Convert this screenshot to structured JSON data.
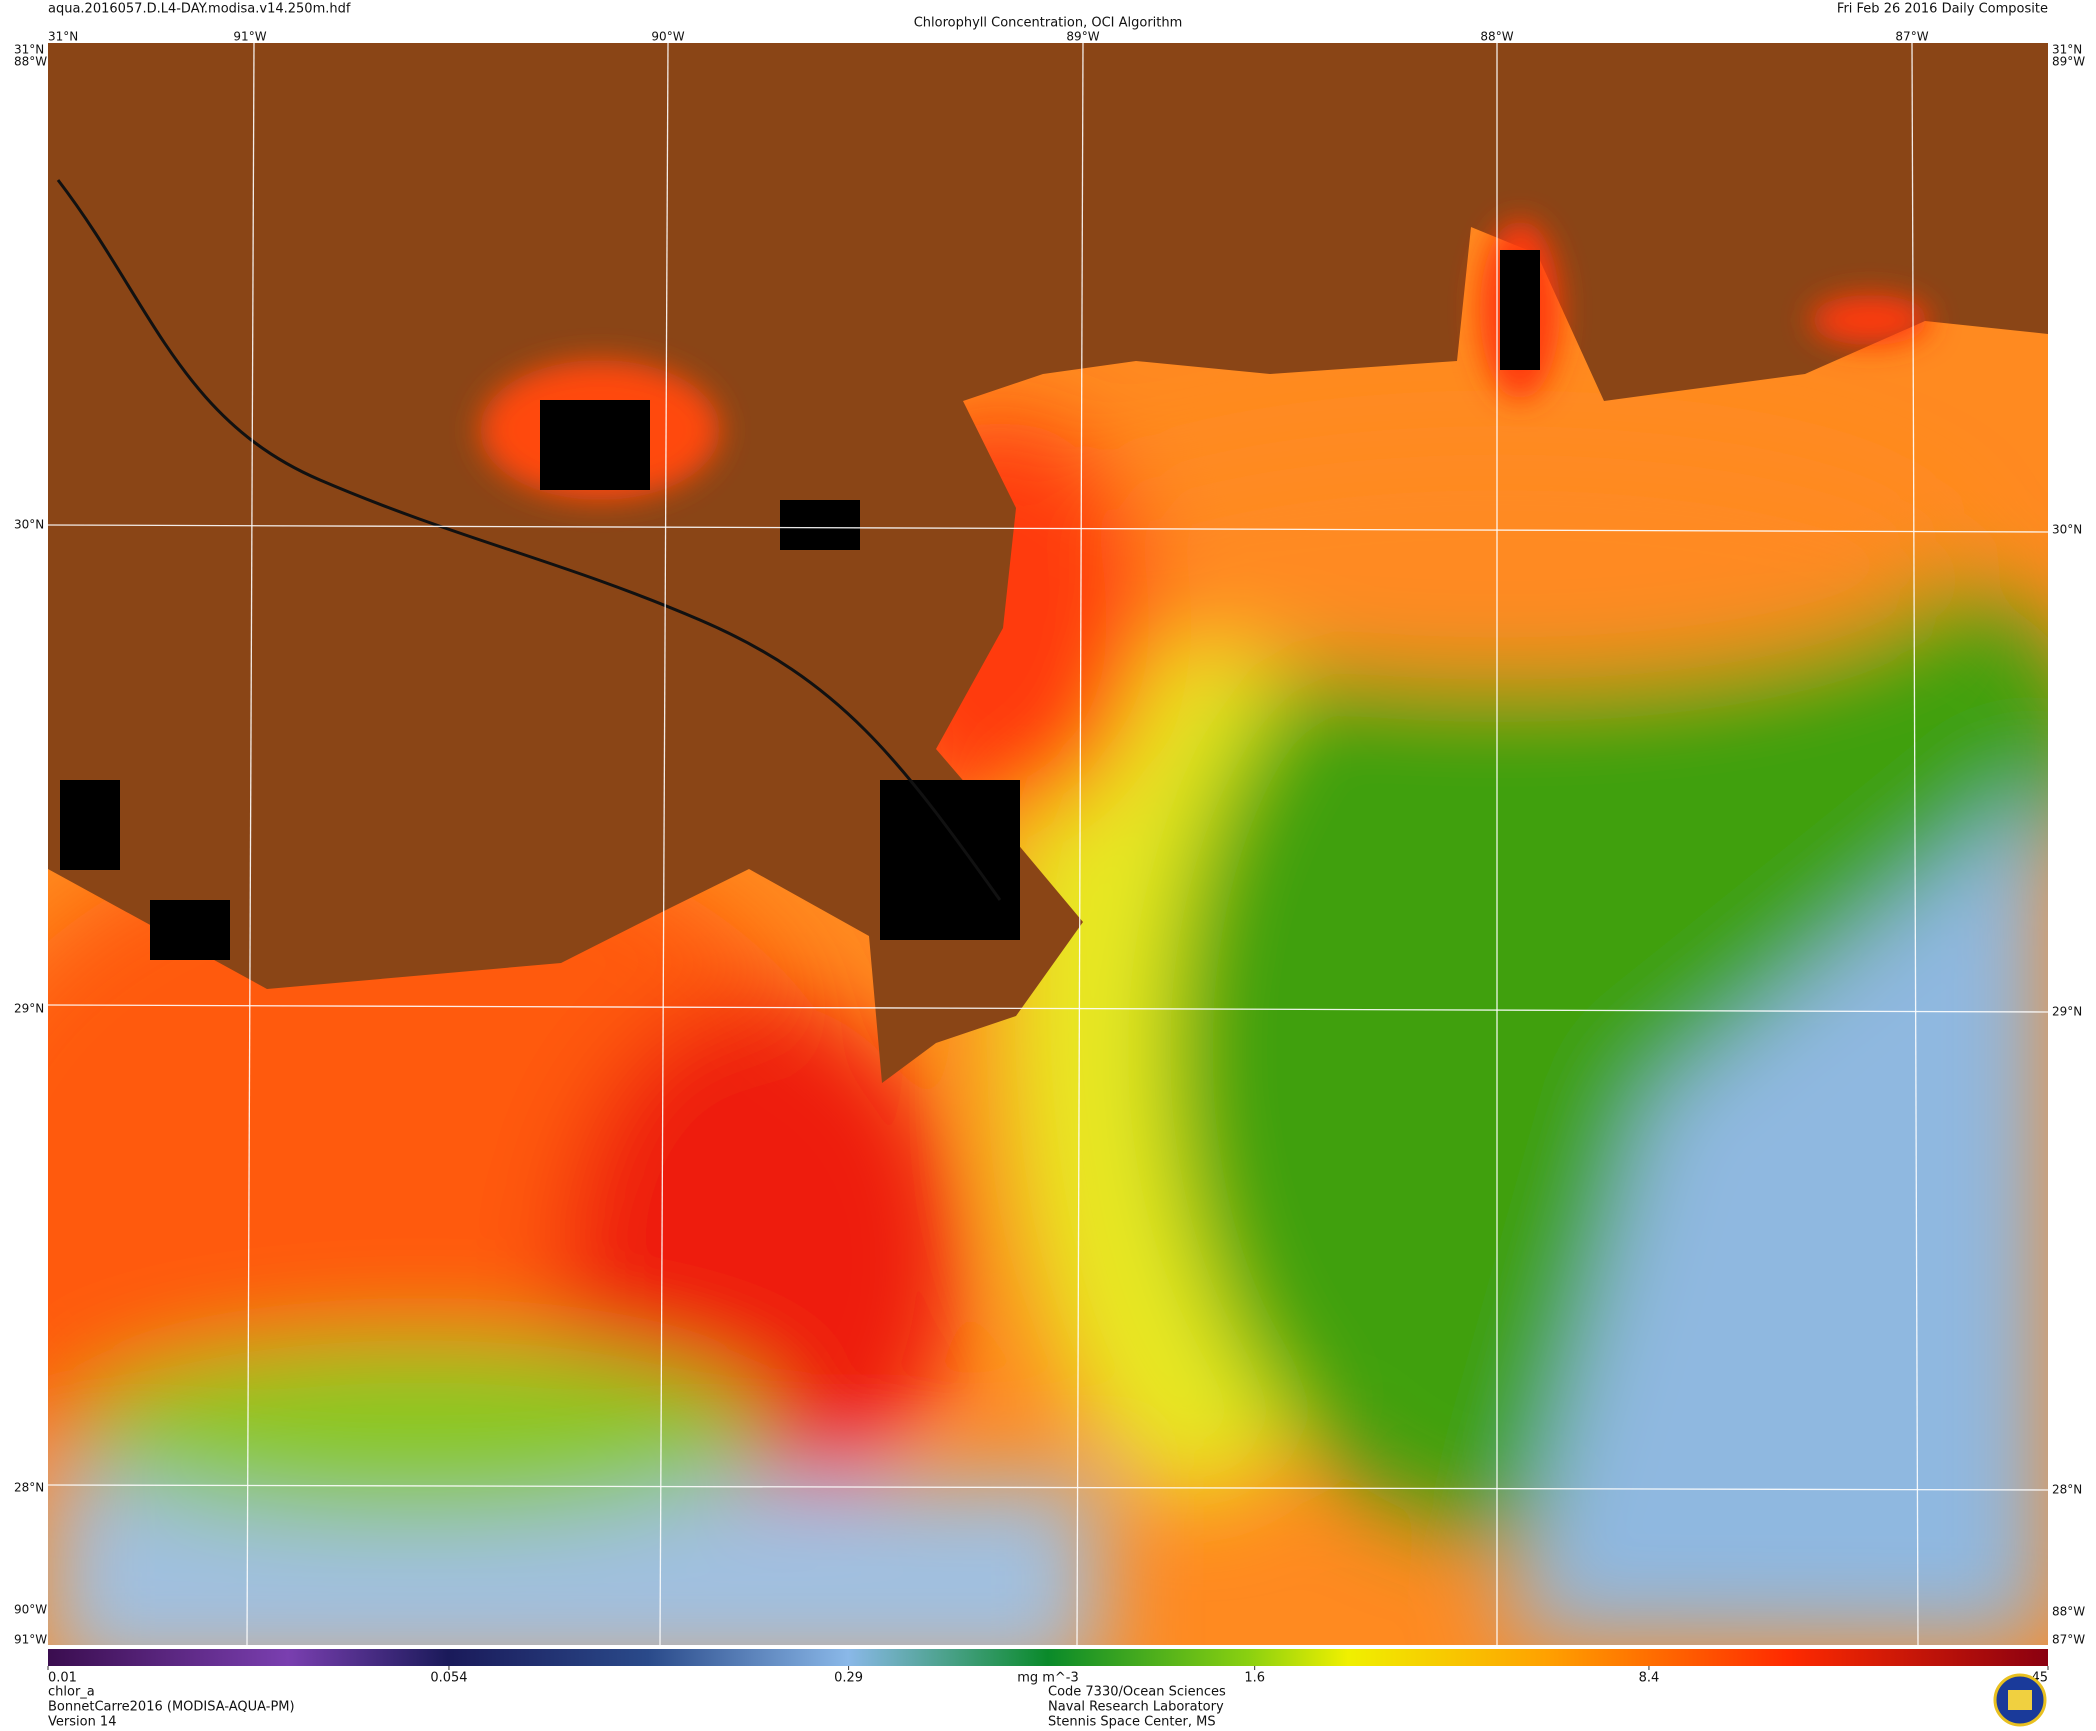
{
  "header": {
    "file": "aqua.2016057.D.L4-DAY.modisa.v14.250m.hdf",
    "title": "Chlorophyll Concentration, OCI Algorithm",
    "date": "Fri Feb 26 2016 Daily Composite"
  },
  "grid": {
    "top_labels": [
      "31°N",
      "91°W",
      "90°W",
      "89°W",
      "88°W",
      "87°W"
    ],
    "left_labels": [
      "31°N",
      "88°W",
      "30°N",
      "29°N",
      "28°N",
      "90°W",
      "91°W"
    ],
    "right_labels": [
      "31°N",
      "89°W",
      "30°N",
      "29°N",
      "28°N",
      "88°W",
      "87°W"
    ]
  },
  "colorbar": {
    "unit": "mg m^-3",
    "scale": "log",
    "range": [
      0.01,
      45
    ],
    "ticks": [
      0.01,
      0.054,
      0.29,
      1.6,
      8.4,
      45
    ]
  },
  "footer": {
    "left": [
      "chlor_a",
      "BonnetCarre2016 (MODISA-AQUA-PM)",
      "Version 14"
    ],
    "center": [
      "Code 7330/Ocean Sciences",
      "Naval Research Laboratory",
      "Stennis Space Center, MS"
    ]
  }
}
